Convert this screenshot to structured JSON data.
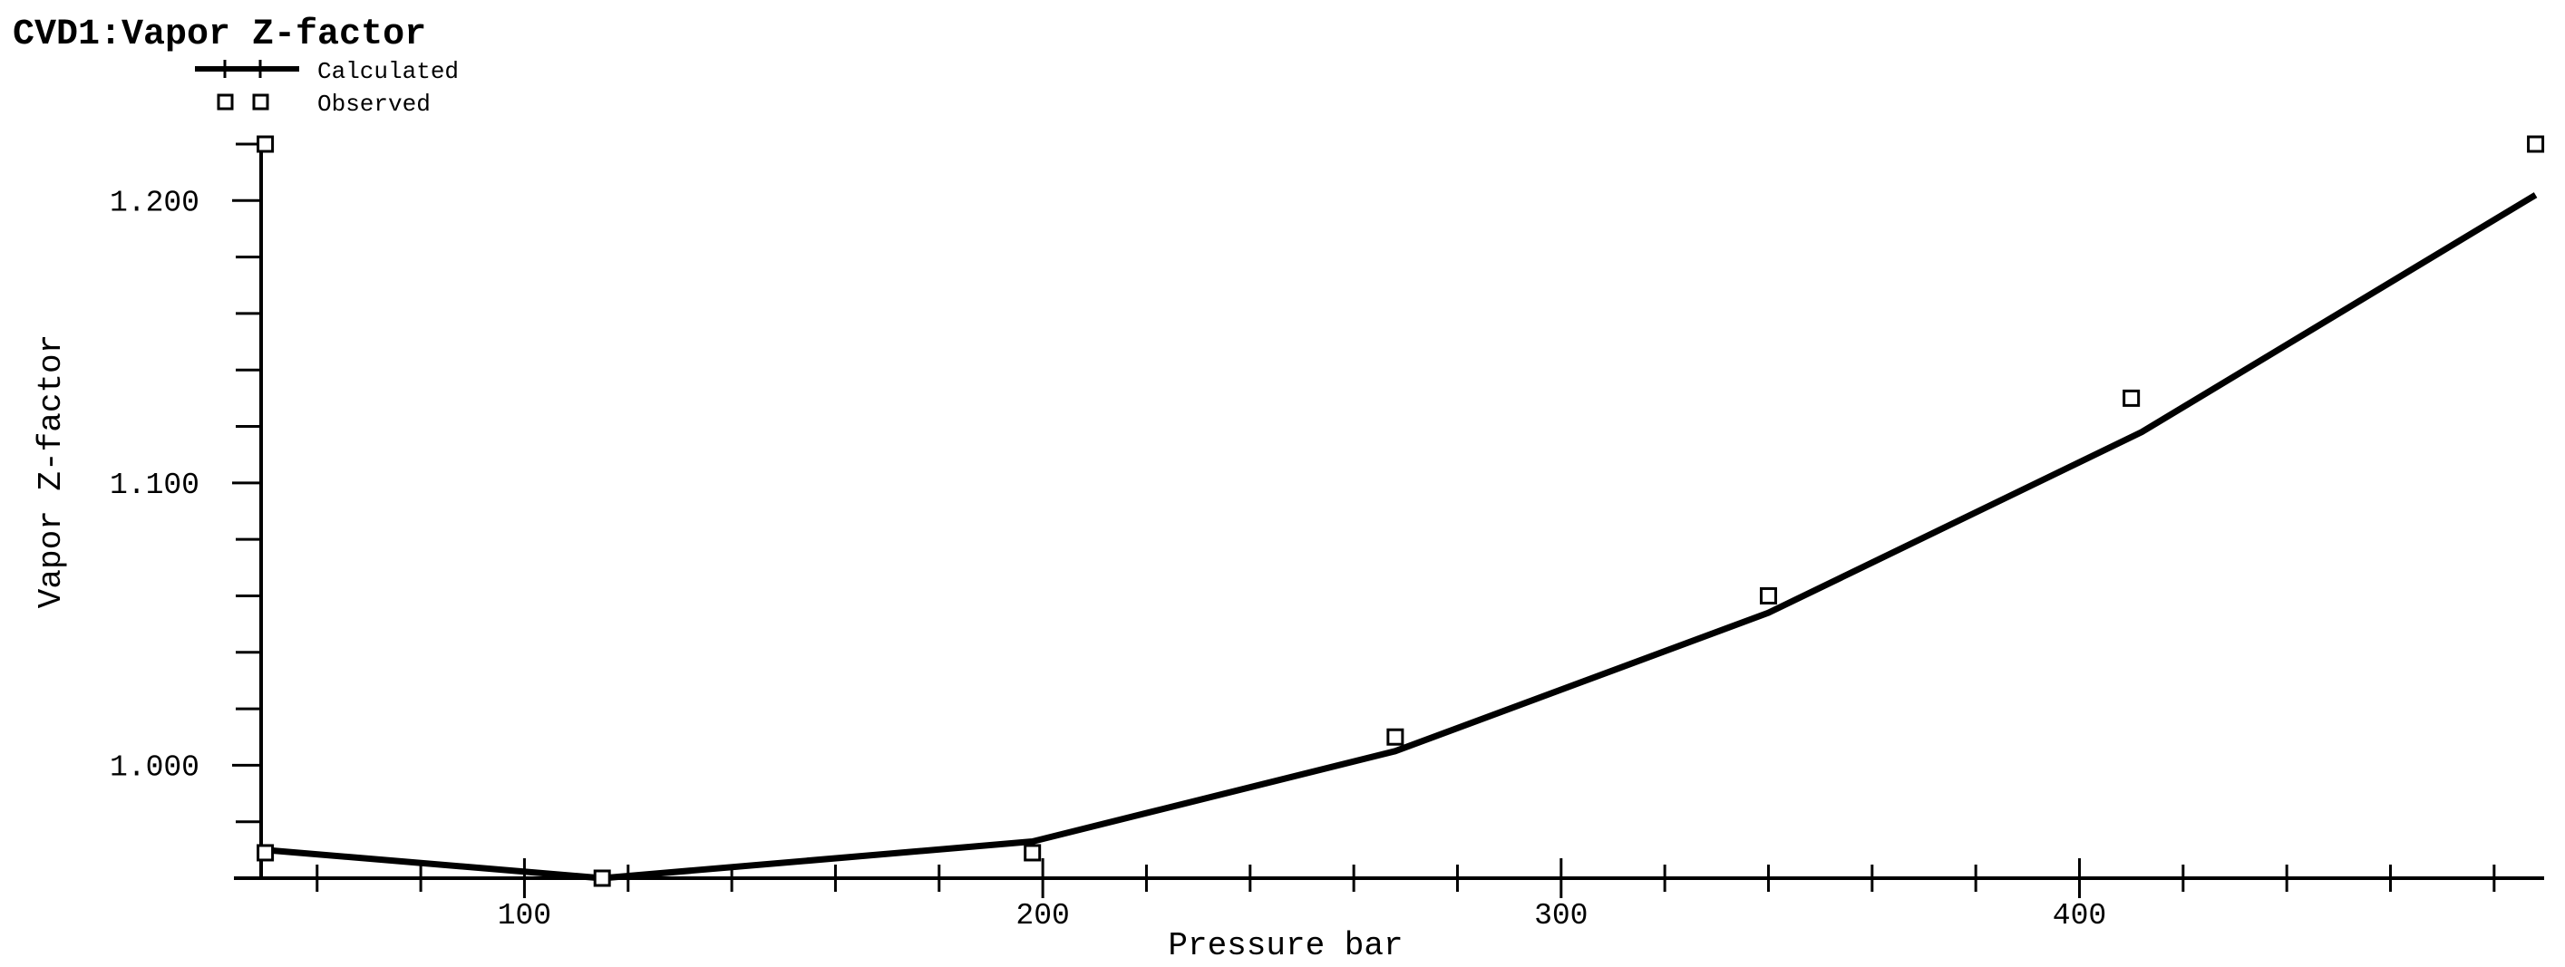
{
  "chart_data": {
    "type": "line",
    "title": "CVD1:Vapor Z-factor",
    "xlabel": "Pressure bar",
    "ylabel": "Vapor Z-factor",
    "xlim": [
      45,
      490
    ],
    "ylim": [
      0.96,
      1.22
    ],
    "x_major_ticks": [
      100,
      200,
      300,
      400
    ],
    "x_tick_labels": [
      "100",
      "200",
      "300",
      "400"
    ],
    "x_minor_step": 20,
    "y_major_ticks": [
      1.0,
      1.1,
      1.2
    ],
    "y_tick_labels": [
      "1.000",
      "1.100",
      "1.200"
    ],
    "y_minor_step": 0.02,
    "legend_position": "top-left",
    "grid": false,
    "series": [
      {
        "name": "Calculated",
        "style": "line",
        "color": "#000000",
        "x": [
          50,
          115,
          198,
          268,
          340,
          412,
          488
        ],
        "y": [
          0.97,
          0.96,
          0.973,
          1.005,
          1.054,
          1.118,
          1.202
        ]
      },
      {
        "name": "Observed",
        "style": "open-square",
        "color": "#000000",
        "x": [
          50,
          115,
          198,
          268,
          340,
          410,
          488
        ],
        "y": [
          0.969,
          0.96,
          0.969,
          1.01,
          1.06,
          1.13,
          1.22
        ]
      },
      {
        "name": "",
        "style": "open-square",
        "color": "#000000",
        "x": [
          50
        ],
        "y": [
          1.22
        ]
      }
    ]
  }
}
